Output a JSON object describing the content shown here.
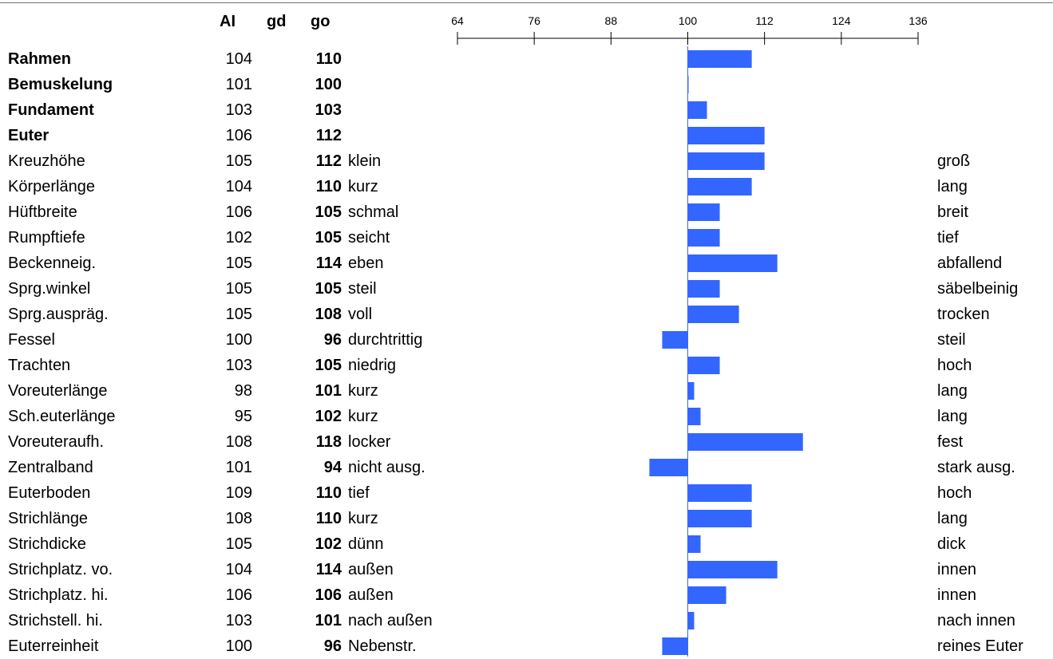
{
  "headers": {
    "ai": "AI",
    "gd": "gd",
    "go": "go"
  },
  "chart_data": {
    "type": "bar",
    "orientation": "horizontal",
    "baseline": 100,
    "axis_ticks": [
      64,
      76,
      88,
      100,
      112,
      124,
      136
    ],
    "xlim": [
      64,
      136
    ],
    "bar_color": "#3366ff",
    "categories": [
      "Rahmen",
      "Bemuskelung",
      "Fundament",
      "Euter",
      "Kreuzhöhe",
      "Körperlänge",
      "Hüftbreite",
      "Rumpftiefe",
      "Beckenneig.",
      "Sprg.winkel",
      "Sprg.auspräg.",
      "Fessel",
      "Trachten",
      "Voreuterlänge",
      "Sch.euterlänge",
      "Voreuteraufh.",
      "Zentralband",
      "Euterboden",
      "Strichlänge",
      "Strichdicke",
      "Strichplatz. vo.",
      "Strichplatz. hi.",
      "Strichstell. hi.",
      "Euterreinheit"
    ],
    "rows": [
      {
        "name": "Rahmen",
        "bold": true,
        "ai": "104",
        "go": "110",
        "low": "",
        "high": ""
      },
      {
        "name": "Bemuskelung",
        "bold": true,
        "ai": "101",
        "go": "100",
        "low": "",
        "high": ""
      },
      {
        "name": "Fundament",
        "bold": true,
        "ai": "103",
        "go": "103",
        "low": "",
        "high": ""
      },
      {
        "name": "Euter",
        "bold": true,
        "ai": "106",
        "go": "112",
        "low": "",
        "high": ""
      },
      {
        "name": "Kreuzhöhe",
        "bold": false,
        "ai": "105",
        "go": "112",
        "low": "klein",
        "high": "groß"
      },
      {
        "name": "Körperlänge",
        "bold": false,
        "ai": "104",
        "go": "110",
        "low": "kurz",
        "high": "lang"
      },
      {
        "name": "Hüftbreite",
        "bold": false,
        "ai": "106",
        "go": "105",
        "low": "schmal",
        "high": "breit"
      },
      {
        "name": "Rumpftiefe",
        "bold": false,
        "ai": "102",
        "go": "105",
        "low": "seicht",
        "high": "tief"
      },
      {
        "name": "Beckenneig.",
        "bold": false,
        "ai": "105",
        "go": "114",
        "low": "eben",
        "high": "abfallend"
      },
      {
        "name": "Sprg.winkel",
        "bold": false,
        "ai": "105",
        "go": "105",
        "low": "steil",
        "high": "säbelbeinig"
      },
      {
        "name": "Sprg.auspräg.",
        "bold": false,
        "ai": "105",
        "go": "108",
        "low": "voll",
        "high": "trocken"
      },
      {
        "name": "Fessel",
        "bold": false,
        "ai": "100",
        "go": "96",
        "low": "durchtrittig",
        "high": "steil"
      },
      {
        "name": "Trachten",
        "bold": false,
        "ai": "103",
        "go": "105",
        "low": "niedrig",
        "high": "hoch"
      },
      {
        "name": "Voreuterlänge",
        "bold": false,
        "ai": "98",
        "go": "101",
        "low": "kurz",
        "high": "lang"
      },
      {
        "name": "Sch.euterlänge",
        "bold": false,
        "ai": "95",
        "go": "102",
        "low": "kurz",
        "high": "lang"
      },
      {
        "name": "Voreuteraufh.",
        "bold": false,
        "ai": "108",
        "go": "118",
        "low": "locker",
        "high": "fest"
      },
      {
        "name": "Zentralband",
        "bold": false,
        "ai": "101",
        "go": "94",
        "low": "nicht ausg.",
        "high": "stark ausg."
      },
      {
        "name": "Euterboden",
        "bold": false,
        "ai": "109",
        "go": "110",
        "low": "tief",
        "high": "hoch"
      },
      {
        "name": "Strichlänge",
        "bold": false,
        "ai": "108",
        "go": "110",
        "low": "kurz",
        "high": "lang"
      },
      {
        "name": "Strichdicke",
        "bold": false,
        "ai": "105",
        "go": "102",
        "low": "dünn",
        "high": "dick"
      },
      {
        "name": "Strichplatz. vo.",
        "bold": false,
        "ai": "104",
        "go": "114",
        "low": "außen",
        "high": "innen"
      },
      {
        "name": "Strichplatz. hi.",
        "bold": false,
        "ai": "106",
        "go": "106",
        "low": "außen",
        "high": "innen"
      },
      {
        "name": "Strichstell. hi.",
        "bold": false,
        "ai": "103",
        "go": "101",
        "low": "nach außen",
        "high": "nach innen"
      },
      {
        "name": "Euterreinheit",
        "bold": false,
        "ai": "100",
        "go": "96",
        "low": "Nebenstr.",
        "high": "reines Euter"
      }
    ]
  }
}
